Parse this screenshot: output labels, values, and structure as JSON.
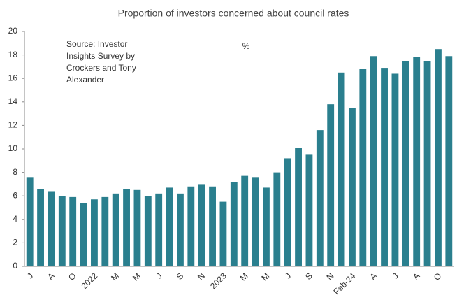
{
  "chart_data": {
    "type": "bar",
    "title": "Proportion of investors concerned about council rates",
    "annotation_lines": [
      "Source: Investor",
      "Insights Survey by",
      "Crockers and Tony",
      "Alexander"
    ],
    "unit_label": "%",
    "categories": [
      "J",
      null,
      "A",
      null,
      "O",
      null,
      "2022",
      null,
      "M",
      null,
      "M",
      null,
      "J",
      null,
      "S",
      null,
      "N",
      null,
      "2023",
      null,
      "M",
      null,
      "M",
      null,
      "J",
      null,
      "S",
      null,
      "N",
      null,
      "Feb-24",
      null,
      "A",
      null,
      "J",
      null,
      "A",
      null,
      "O",
      null
    ],
    "values": [
      7.6,
      6.6,
      6.4,
      6.0,
      5.9,
      5.4,
      5.7,
      5.9,
      6.2,
      6.6,
      6.5,
      6.0,
      6.2,
      6.7,
      6.2,
      6.8,
      7.0,
      6.8,
      5.5,
      7.2,
      7.7,
      7.6,
      6.7,
      8.0,
      9.2,
      10.1,
      9.5,
      11.6,
      13.8,
      16.5,
      13.5,
      16.8,
      17.9,
      16.9,
      16.4,
      17.5,
      17.8,
      17.5,
      18.5,
      17.9
    ],
    "color": "#2a7f8e",
    "ylim": [
      0,
      20
    ],
    "yticks": [
      0,
      2,
      4,
      6,
      8,
      10,
      12,
      14,
      16,
      18,
      20
    ]
  }
}
